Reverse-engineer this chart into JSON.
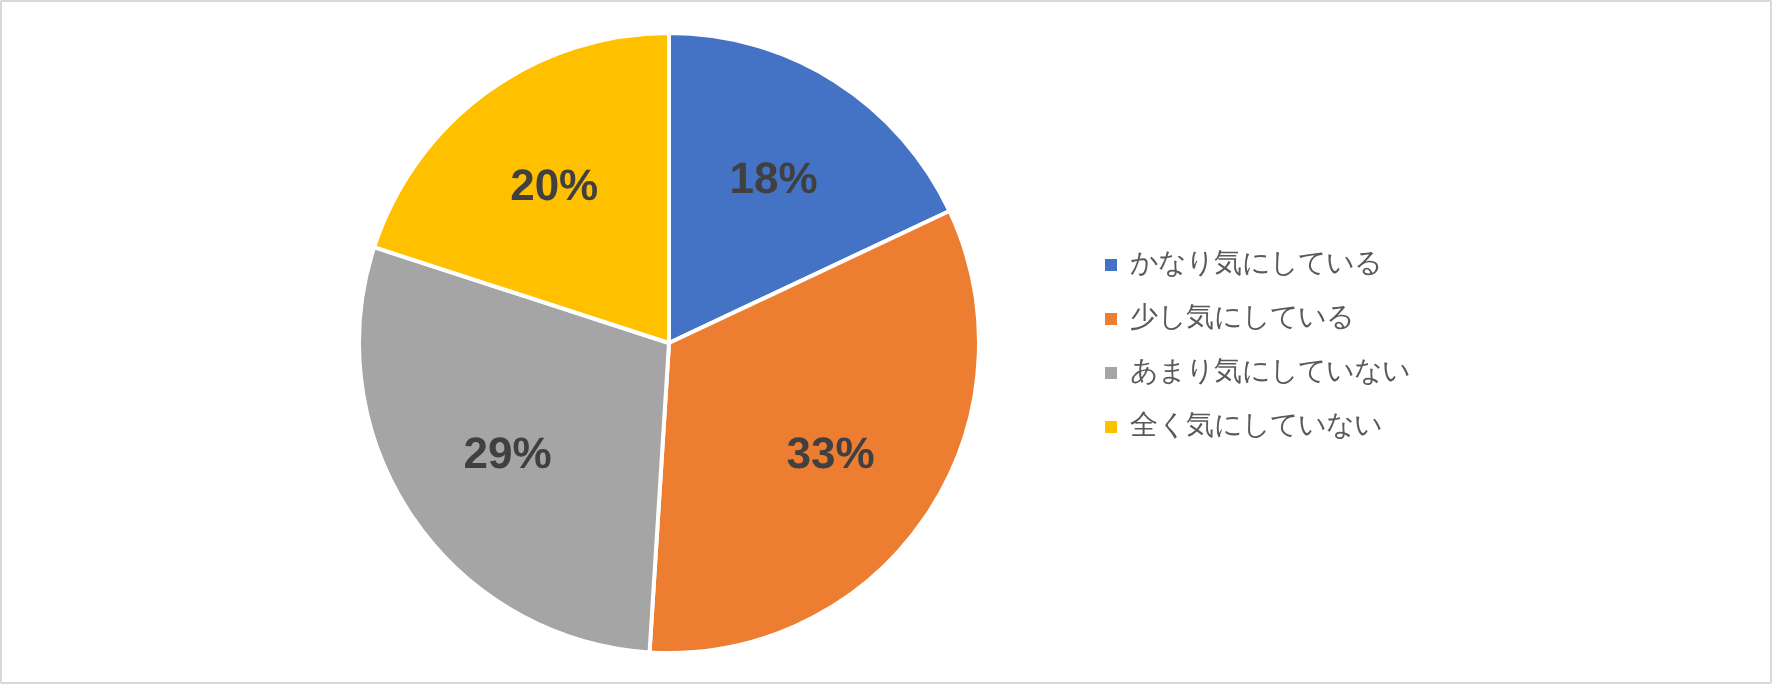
{
  "chart_data": {
    "type": "pie",
    "categories": [
      "かなり気にしている",
      "少し気にしている",
      "あまり気にしていない",
      "全く気にしていない"
    ],
    "values": [
      18,
      33,
      29,
      20
    ],
    "colors": [
      "#4472c4",
      "#ed7d31",
      "#a5a5a5",
      "#ffc000"
    ],
    "value_labels": [
      "18%",
      "33%",
      "29%",
      "20%"
    ],
    "legend": "right"
  }
}
